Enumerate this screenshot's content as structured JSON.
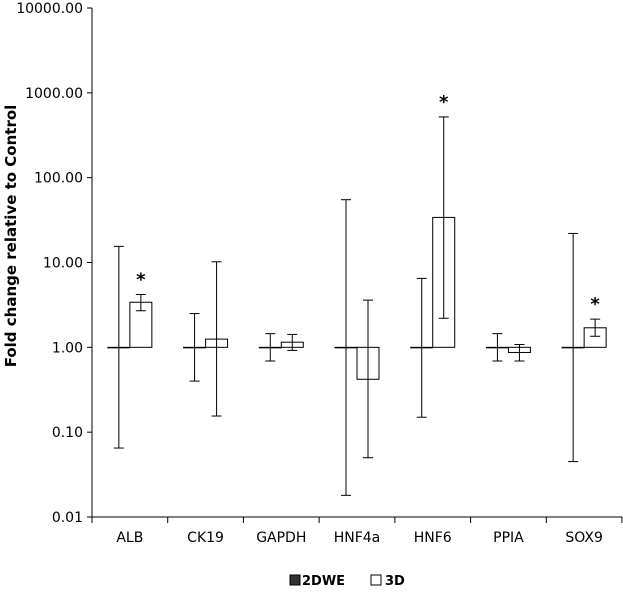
{
  "chart_data": {
    "type": "bar",
    "title": "",
    "xlabel": "",
    "ylabel": "Fold change relative to Control",
    "yscale": "log",
    "ylim": [
      0.01,
      10000
    ],
    "yticks": [
      "0.01",
      "0.10",
      "1.00",
      "10.00",
      "100.00",
      "1000.00",
      "10000.00"
    ],
    "ytick_values": [
      0.01,
      0.1,
      1,
      10,
      100,
      1000,
      10000
    ],
    "categories": [
      "ALB",
      "CK19",
      "GAPDH",
      "HNF4a",
      "HNF6",
      "PPIA",
      "SOX9"
    ],
    "series": [
      {
        "name": "2DWE",
        "color": "#333333",
        "values": [
          1,
          1,
          1,
          1,
          1,
          1,
          1
        ],
        "error_low": [
          0.065,
          0.4,
          0.69,
          0.018,
          0.15,
          0.69,
          0.045
        ],
        "error_high": [
          15.5,
          2.5,
          1.45,
          55,
          6.5,
          1.45,
          22
        ]
      },
      {
        "name": "3D",
        "color": "#ffffff",
        "values": [
          3.4,
          1.25,
          1.15,
          0.42,
          34,
          0.87,
          1.7
        ],
        "error_low": [
          2.7,
          0.155,
          0.92,
          0.05,
          2.2,
          0.69,
          1.35
        ],
        "error_high": [
          4.2,
          10.2,
          1.42,
          3.6,
          520,
          1.08,
          2.15
        ]
      }
    ],
    "significance": [
      "*",
      "",
      "",
      "",
      "*",
      "",
      "*"
    ],
    "grid": false,
    "legend": "bottom-center"
  }
}
